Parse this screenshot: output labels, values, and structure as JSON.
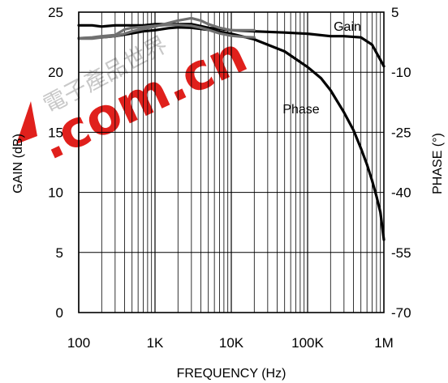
{
  "chart_data": {
    "type": "line",
    "title": "",
    "xlabel": "FREQUENCY (Hz)",
    "ylabel_left": "GAIN (dB)",
    "ylabel_right": "PHASE (°)",
    "x_scale": "log",
    "xlim": [
      100,
      1000000
    ],
    "ylim_left": [
      0,
      25
    ],
    "ylim_right": [
      -70,
      5
    ],
    "x_ticks": [
      100,
      1000,
      10000,
      100000,
      1000000
    ],
    "x_tick_labels": [
      "100",
      "1K",
      "10K",
      "100K",
      "1M"
    ],
    "y_left_ticks": [
      0,
      5,
      10,
      15,
      20,
      25
    ],
    "y_left_tick_labels": [
      "0",
      "5",
      "10",
      "15",
      "20",
      "25"
    ],
    "y_right_ticks": [
      -70,
      -55,
      -40,
      -25,
      -10,
      5
    ],
    "y_right_tick_labels": [
      "-70",
      "-55",
      "-40",
      "-25",
      "-10",
      "5"
    ],
    "grid": true,
    "series": [
      {
        "name": "Gain",
        "axis": "left",
        "color": "#000000",
        "x": [
          100,
          150,
          200,
          300,
          500,
          700,
          1000,
          1500,
          2000,
          3000,
          5000,
          7000,
          10000,
          20000,
          50000,
          100000,
          200000,
          300000,
          500000,
          700000,
          1000000
        ],
        "y": [
          23.9,
          23.9,
          23.8,
          23.9,
          23.9,
          23.9,
          24.0,
          24.0,
          24.0,
          24.0,
          23.7,
          23.6,
          23.5,
          23.4,
          23.3,
          23.2,
          23.0,
          23.0,
          22.9,
          22.3,
          20.5
        ]
      },
      {
        "name": "Phase",
        "axis": "right",
        "color": "#000000",
        "x": [
          100,
          150,
          200,
          300,
          500,
          700,
          1000,
          1500,
          2000,
          3000,
          5000,
          10000,
          20000,
          50000,
          100000,
          150000,
          200000,
          300000,
          400000,
          500000,
          600000,
          700000,
          800000,
          900000,
          1000000
        ],
        "y": [
          -1.5,
          -1.4,
          -1.3,
          -1.0,
          -0.3,
          0.2,
          0.5,
          1.0,
          1.2,
          1.1,
          0.6,
          -0.4,
          -1.8,
          -4.8,
          -8.7,
          -11.5,
          -14.5,
          -20.0,
          -24.5,
          -29.0,
          -33.0,
          -37.0,
          -41.0,
          -45.0,
          -51.8
        ]
      },
      {
        "name": "",
        "axis": "left",
        "color": "#707070",
        "x": [
          100,
          150,
          200,
          300,
          400,
          500,
          700,
          1000,
          1500,
          2000,
          3000,
          4000,
          5000,
          7000,
          10000,
          15000,
          20000
        ],
        "y": [
          22.8,
          22.8,
          22.9,
          23.0,
          23.2,
          23.4,
          23.6,
          23.8,
          24.1,
          24.3,
          24.5,
          24.3,
          24.0,
          23.7,
          23.5,
          23.5,
          23.5
        ]
      },
      {
        "name": "",
        "axis": "right",
        "color": "#707070",
        "x": [
          100,
          150,
          200,
          300,
          400,
          500,
          700,
          1000,
          1500,
          2000,
          3000,
          4000,
          5000,
          7000,
          10000,
          15000,
          20000
        ],
        "y": [
          -1.5,
          -1.3,
          -1.0,
          -0.7,
          0.7,
          1.1,
          1.3,
          1.6,
          1.8,
          1.8,
          1.6,
          1.1,
          0.6,
          -0.3,
          -0.9,
          -1.2,
          -1.3
        ]
      }
    ],
    "annotations": [
      "Gain",
      "Phase"
    ]
  },
  "watermark": {
    "text": ".com.cn",
    "chinese_text": "電子產品世界",
    "color": "#e0201c"
  }
}
